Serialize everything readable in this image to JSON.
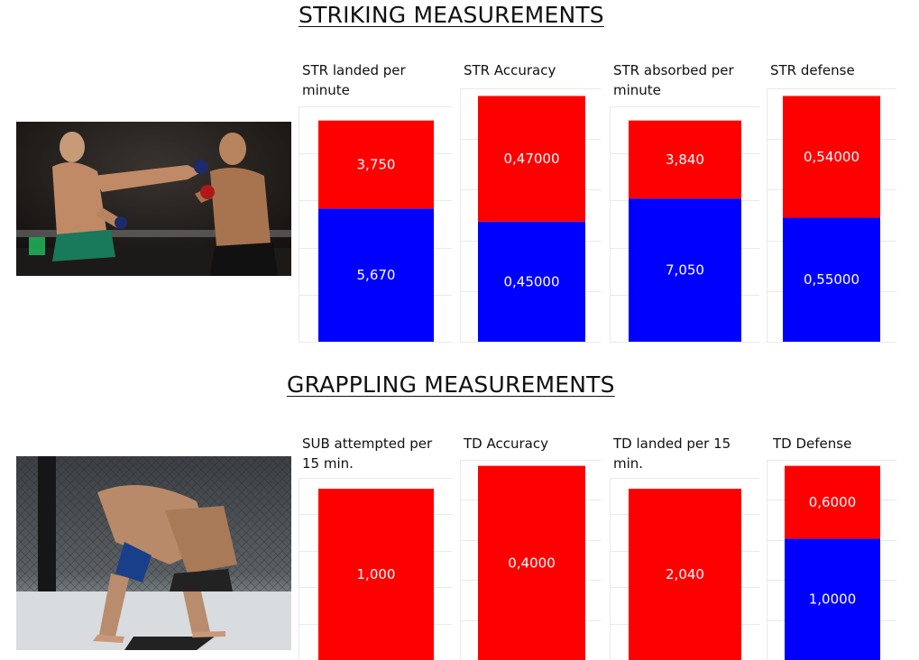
{
  "sections": {
    "striking_title": "STRIKING MEASUREMENTS",
    "grappling_title": "GRAPPLING MEASUREMENTS"
  },
  "colors": {
    "top_segment": "#ff0000",
    "bottom_segment": "#0000ff",
    "gridline": "#e9e9e9"
  },
  "photos": {
    "striking": {
      "caption": "",
      "icon": "fighters-punch-photo"
    },
    "grappling": {
      "caption": "",
      "icon": "fighters-grappling-photo"
    }
  },
  "chart_data": [
    {
      "id": "str-landed",
      "type": "bar",
      "title": "STR landed per minute",
      "stacked": true,
      "series": [
        {
          "values": [
            3.75
          ],
          "labels": [
            "3,750"
          ]
        },
        {
          "values": [
            5.67
          ],
          "labels": [
            "5,670"
          ]
        }
      ]
    },
    {
      "id": "str-accuracy",
      "type": "bar",
      "title": "STR Accuracy",
      "stacked": true,
      "series": [
        {
          "values": [
            0.47
          ],
          "labels": [
            "0,47000"
          ]
        },
        {
          "values": [
            0.45
          ],
          "labels": [
            "0,45000"
          ]
        }
      ]
    },
    {
      "id": "str-absorbed",
      "type": "bar",
      "title": "STR absorbed per minute",
      "stacked": true,
      "series": [
        {
          "values": [
            3.84
          ],
          "labels": [
            "3,840"
          ]
        },
        {
          "values": [
            7.05
          ],
          "labels": [
            "7,050"
          ]
        }
      ]
    },
    {
      "id": "str-defense",
      "type": "bar",
      "title": "STR defense",
      "stacked": true,
      "series": [
        {
          "values": [
            0.54
          ],
          "labels": [
            "0,54000"
          ]
        },
        {
          "values": [
            0.55
          ],
          "labels": [
            "0,55000"
          ]
        }
      ]
    },
    {
      "id": "sub-attempted",
      "type": "bar",
      "title": "SUB attempted per 15 min.",
      "stacked": true,
      "series": [
        {
          "values": [
            1.0
          ],
          "labels": [
            "1,000"
          ]
        },
        {
          "values": [
            0
          ],
          "labels": [
            ""
          ]
        }
      ]
    },
    {
      "id": "td-accuracy",
      "type": "bar",
      "title": "TD Accuracy",
      "stacked": true,
      "series": [
        {
          "values": [
            0.4
          ],
          "labels": [
            "0,4000"
          ]
        },
        {
          "values": [
            0
          ],
          "labels": [
            ""
          ]
        }
      ]
    },
    {
      "id": "td-landed",
      "type": "bar",
      "title": "TD landed per 15 min.",
      "stacked": true,
      "series": [
        {
          "values": [
            2.04
          ],
          "labels": [
            "2,040"
          ]
        },
        {
          "values": [
            0
          ],
          "labels": [
            ""
          ]
        }
      ]
    },
    {
      "id": "td-defense",
      "type": "bar",
      "title": "TD Defense",
      "stacked": true,
      "series": [
        {
          "values": [
            0.6
          ],
          "labels": [
            "0,6000"
          ]
        },
        {
          "values": [
            1.0
          ],
          "labels": [
            "1,0000"
          ]
        }
      ]
    }
  ]
}
